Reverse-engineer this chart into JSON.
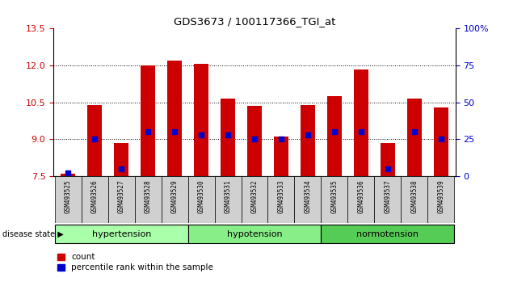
{
  "title": "GDS3673 / 100117366_TGI_at",
  "samples": [
    "GSM493525",
    "GSM493526",
    "GSM493527",
    "GSM493528",
    "GSM493529",
    "GSM493530",
    "GSM493531",
    "GSM493532",
    "GSM493533",
    "GSM493534",
    "GSM493535",
    "GSM493536",
    "GSM493537",
    "GSM493538",
    "GSM493539"
  ],
  "bar_heights": [
    7.6,
    10.4,
    8.85,
    12.0,
    12.2,
    12.05,
    10.65,
    10.35,
    9.1,
    10.4,
    10.75,
    11.85,
    8.85,
    10.65,
    10.3
  ],
  "blue_dot_percentiles": [
    2,
    25,
    5,
    30,
    30,
    28,
    28,
    25,
    25,
    28,
    30,
    30,
    5,
    30,
    25
  ],
  "ylim_left": [
    7.5,
    13.5
  ],
  "ylim_right": [
    0,
    100
  ],
  "yticks_left": [
    7.5,
    9.0,
    10.5,
    12.0,
    13.5
  ],
  "yticks_right": [
    0,
    25,
    50,
    75,
    100
  ],
  "groups": [
    {
      "label": "hypertension",
      "indices": [
        0,
        4
      ],
      "color": "#aaffaa"
    },
    {
      "label": "hypotension",
      "indices": [
        5,
        9
      ],
      "color": "#88ee88"
    },
    {
      "label": "normotension",
      "indices": [
        10,
        14
      ],
      "color": "#66dd66"
    }
  ],
  "bar_color": "#cc0000",
  "dot_color": "#0000cc",
  "bar_width": 0.55,
  "bar_bottom": 7.5,
  "tick_label_color_left": "#cc0000",
  "tick_label_color_right": "#0000cc",
  "grid_yticks": [
    9.0,
    10.5,
    12.0
  ],
  "legend_items": [
    "count",
    "percentile rank within the sample"
  ],
  "xlim": [
    -0.55,
    14.55
  ]
}
